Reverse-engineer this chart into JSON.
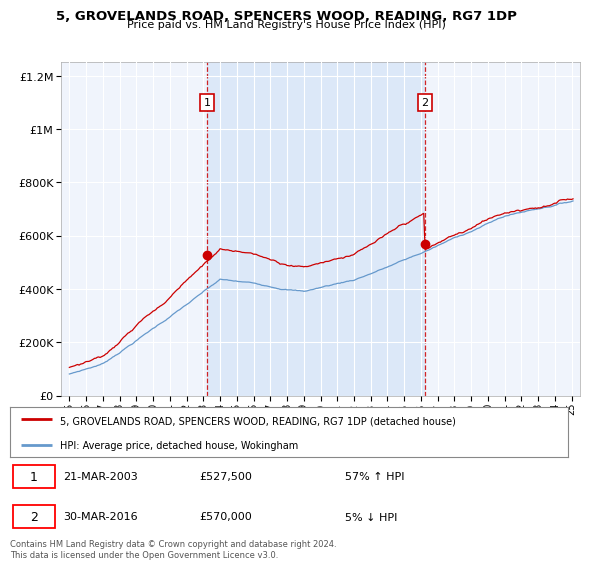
{
  "title": "5, GROVELANDS ROAD, SPENCERS WOOD, READING, RG7 1DP",
  "subtitle": "Price paid vs. HM Land Registry's House Price Index (HPI)",
  "legend_line1": "5, GROVELANDS ROAD, SPENCERS WOOD, READING, RG7 1DP (detached house)",
  "legend_line2": "HPI: Average price, detached house, Wokingham",
  "annotation1_date": "21-MAR-2003",
  "annotation1_price": "£527,500",
  "annotation1_hpi": "57% ↑ HPI",
  "annotation2_date": "30-MAR-2016",
  "annotation2_price": "£570,000",
  "annotation2_hpi": "5% ↓ HPI",
  "footer": "Contains HM Land Registry data © Crown copyright and database right 2024.\nThis data is licensed under the Open Government Licence v3.0.",
  "sale1_year": 2003.22,
  "sale1_price": 527500,
  "sale2_year": 2016.24,
  "sale2_price": 570000,
  "red_color": "#cc0000",
  "blue_color": "#6699cc",
  "highlight_color": "#dce8f8",
  "ylim_min": 0,
  "ylim_max": 1250000,
  "xlim_min": 1994.5,
  "xlim_max": 2025.5,
  "background_color": "#ffffff",
  "plot_bg_color": "#f0f4fc"
}
